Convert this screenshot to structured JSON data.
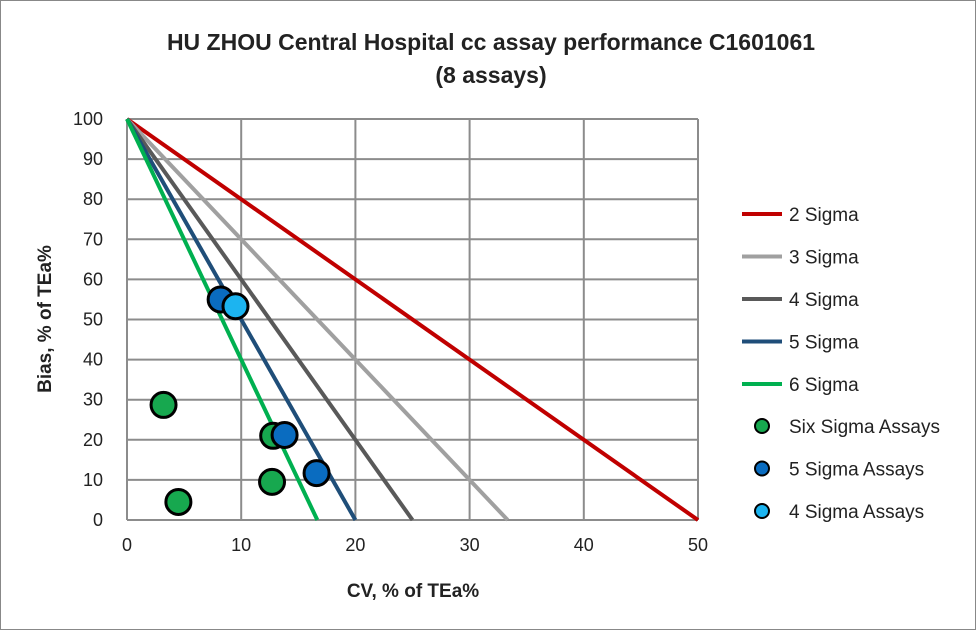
{
  "chart_data": {
    "type": "scatter",
    "title": "HU ZHOU Central Hospital cc assay performance C1601061",
    "subtitle": "(8 assays)",
    "xlabel": "CV, % of TEa%",
    "ylabel": "Bias, % of TEa%",
    "xlim": [
      0,
      50
    ],
    "ylim": [
      0,
      100
    ],
    "xticks": [
      0,
      10,
      20,
      30,
      40,
      50
    ],
    "yticks": [
      0,
      10,
      20,
      30,
      40,
      50,
      60,
      70,
      80,
      90,
      100
    ],
    "grid": true,
    "legend_position": "right",
    "lines": [
      {
        "name": "2 Sigma",
        "sigma": 2,
        "color": "#C00000"
      },
      {
        "name": "3 Sigma",
        "sigma": 3,
        "color": "#A0A0A0"
      },
      {
        "name": "4 Sigma",
        "sigma": 4,
        "color": "#595959"
      },
      {
        "name": "5 Sigma",
        "sigma": 5,
        "color": "#1F4E79"
      },
      {
        "name": "6 Sigma",
        "sigma": 6,
        "color": "#00B050"
      }
    ],
    "series": [
      {
        "name": "Six Sigma Assays",
        "color": "#17A84F",
        "points": [
          [
            3.2,
            28.7
          ],
          [
            4.5,
            4.5
          ],
          [
            12.7,
            9.5
          ],
          [
            12.8,
            21.0
          ]
        ]
      },
      {
        "name": "5 Sigma Assays",
        "color": "#0A6CC0",
        "points": [
          [
            8.2,
            55.0
          ],
          [
            13.8,
            21.2
          ],
          [
            16.6,
            11.7
          ]
        ]
      },
      {
        "name": "4 Sigma Assays",
        "color": "#1CB4F0",
        "points": [
          [
            9.5,
            53.3
          ]
        ]
      }
    ]
  }
}
